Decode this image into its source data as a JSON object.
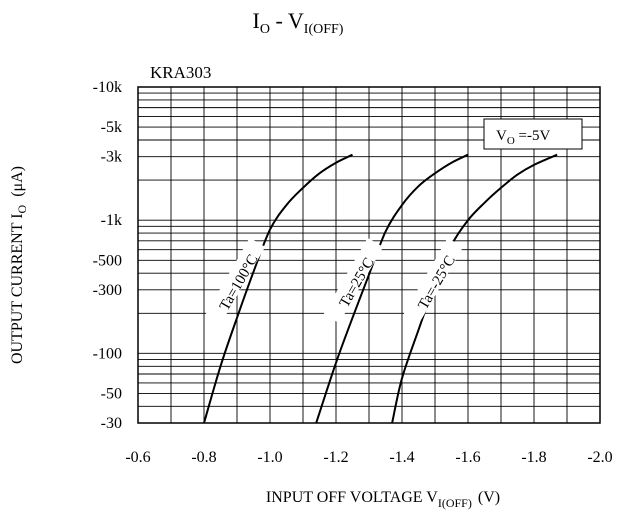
{
  "chart_data": {
    "type": "line",
    "title": {
      "main": "I",
      "main_sub": "O",
      "mid": " - V",
      "mid_sub": "I(OFF)"
    },
    "part_label": "KRA303",
    "condition": {
      "main": "V",
      "sub": "O",
      "rest": " =-5V"
    },
    "xlabel": {
      "main": "INPUT OFF VOLTAGE V",
      "sub": "I(OFF)",
      "unit": "(V)"
    },
    "ylabel": {
      "main": "OUTPUT CURRENT I",
      "sub": "O",
      "unit": "(μA)"
    },
    "xlim": [
      -0.6,
      -2.0
    ],
    "x_ticks": [
      -0.6,
      -0.8,
      -1.0,
      -1.2,
      -1.4,
      -1.6,
      -1.8,
      -2.0
    ],
    "x_tick_labels": [
      "-0.6",
      "-0.8",
      "-1.0",
      "-1.2",
      "-1.4",
      "-1.6",
      "-1.8",
      "-2.0"
    ],
    "y_scale": "log",
    "ylim": [
      -30,
      -10000
    ],
    "y_ticks": [
      -10000,
      -5000,
      -3000,
      -1000,
      -500,
      -300,
      -100,
      -50,
      -30
    ],
    "y_tick_labels": [
      "-10k",
      "-5k",
      "-3k",
      "-1k",
      "-500",
      "-300",
      "-100",
      "-50",
      "-30"
    ],
    "grid": true,
    "series": [
      {
        "name": "Ta=100°C",
        "x": [
          -0.8,
          -0.85,
          -0.9,
          -0.95,
          -1.0,
          -1.05,
          -1.1,
          -1.15,
          -1.2,
          -1.25
        ],
        "y": [
          -30,
          -80,
          -185,
          -410,
          -850,
          -1300,
          -1750,
          -2250,
          -2700,
          -3100
        ]
      },
      {
        "name": "Ta=25°C",
        "x": [
          -1.14,
          -1.2,
          -1.25,
          -1.3,
          -1.35,
          -1.4,
          -1.45,
          -1.5,
          -1.55,
          -1.6
        ],
        "y": [
          -30,
          -85,
          -185,
          -390,
          -820,
          -1300,
          -1800,
          -2250,
          -2700,
          -3100
        ]
      },
      {
        "name": "Ta=-25°C",
        "x": [
          -1.37,
          -1.4,
          -1.45,
          -1.5,
          -1.55,
          -1.6,
          -1.65,
          -1.7,
          -1.75,
          -1.8,
          -1.87
        ],
        "y": [
          -30,
          -65,
          -150,
          -330,
          -650,
          -1000,
          -1350,
          -1750,
          -2200,
          -2600,
          -3100
        ]
      }
    ]
  }
}
